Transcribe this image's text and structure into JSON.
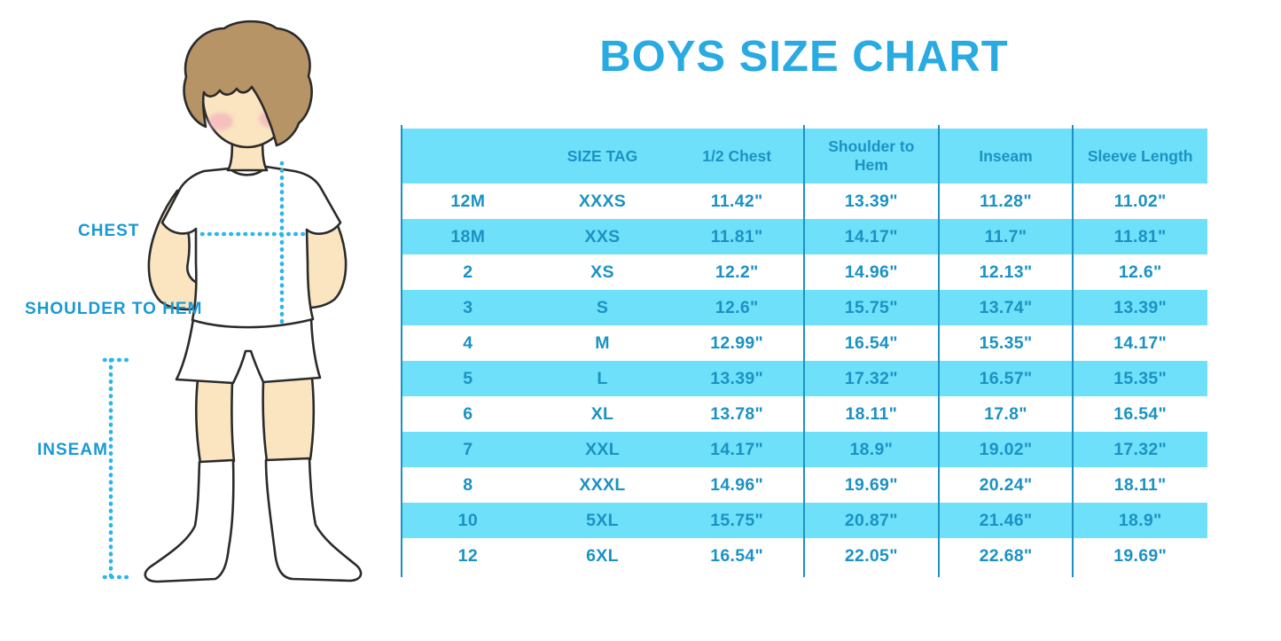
{
  "title": {
    "text": "BOYS SIZE CHART"
  },
  "colors": {
    "table_fill_cyan": "#6FE0FA",
    "table_line_text_blue": "#1B92C3",
    "title_blue": "#29ABE2",
    "figure_label_blue": "#1999D3",
    "dotted_line_cyan": "#2CB6EA",
    "skin": "#FAE5C0",
    "hair_brown": "#B79465",
    "cheek_pink": "#F2A9BC",
    "outline_dark": "#2B2B2B"
  },
  "figure": {
    "labels": {
      "chest": "CHEST",
      "shoulder_to_hem": "SHOULDER TO HEM",
      "inseam": "INSEAM"
    }
  },
  "chart_data": {
    "type": "table",
    "title": "BOYS SIZE CHART",
    "columns": [
      "",
      "SIZE TAG",
      "1/2 Chest",
      "Shoulder to Hem",
      "Inseam",
      "Sleeve Length"
    ],
    "rows": [
      [
        "12M",
        "XXXS",
        "11.42\"",
        "13.39\"",
        "11.28\"",
        "11.02\""
      ],
      [
        "18M",
        "XXS",
        "11.81\"",
        "14.17\"",
        "11.7\"",
        "11.81\""
      ],
      [
        "2",
        "XS",
        "12.2\"",
        "14.96\"",
        "12.13\"",
        "12.6\""
      ],
      [
        "3",
        "S",
        "12.6\"",
        "15.75\"",
        "13.74\"",
        "13.39\""
      ],
      [
        "4",
        "M",
        "12.99\"",
        "16.54\"",
        "15.35\"",
        "14.17\""
      ],
      [
        "5",
        "L",
        "13.39\"",
        "17.32\"",
        "16.57\"",
        "15.35\""
      ],
      [
        "6",
        "XL",
        "13.78\"",
        "18.11\"",
        "17.8\"",
        "16.54\""
      ],
      [
        "7",
        "XXL",
        "14.17\"",
        "18.9\"",
        "19.02\"",
        "17.32\""
      ],
      [
        "8",
        "XXXL",
        "14.96\"",
        "19.69\"",
        "20.24\"",
        "18.11\""
      ],
      [
        "10",
        "5XL",
        "15.75\"",
        "20.87\"",
        "21.46\"",
        "18.9\""
      ],
      [
        "12",
        "6XL",
        "16.54\"",
        "22.05\"",
        "22.68\"",
        "19.69\""
      ]
    ],
    "layout": {
      "striped": true,
      "header_fill": "cyan",
      "alt_rows_fill": "cyan"
    }
  }
}
